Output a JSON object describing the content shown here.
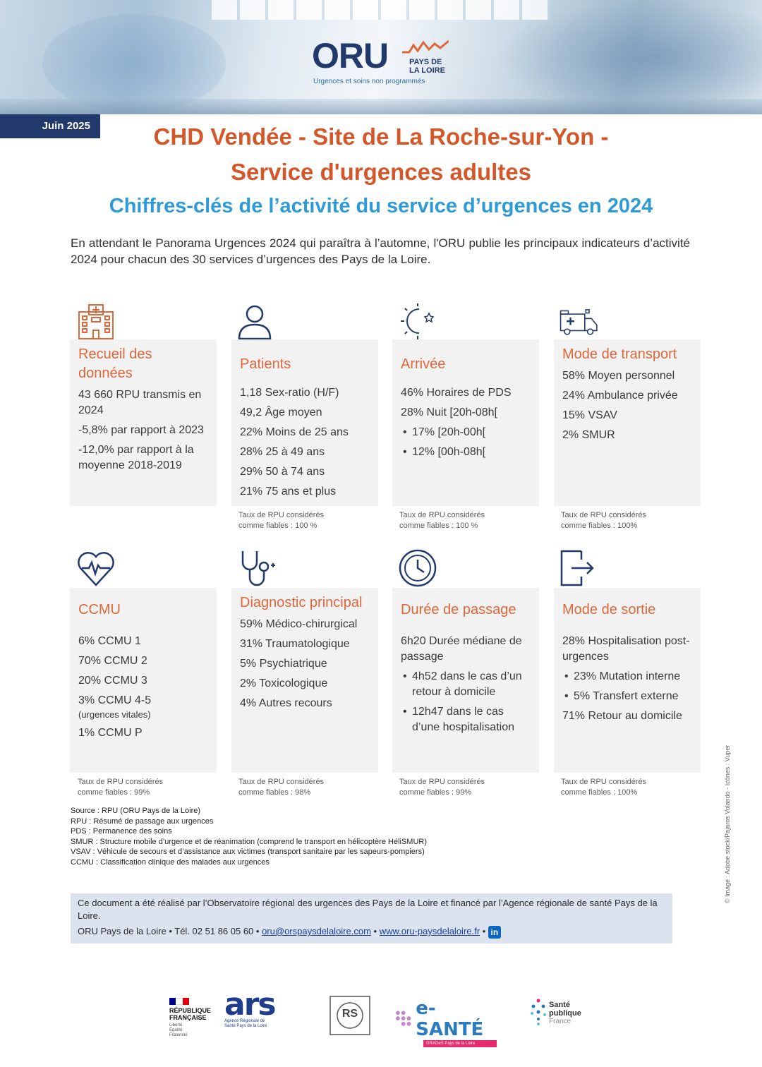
{
  "header": {
    "logo_main": "ORU",
    "logo_region_1": "PAYS DE",
    "logo_region_2": "LA LOIRE",
    "logo_tagline": "Urgences et soins non programmés",
    "date": "Juin 2025"
  },
  "title": {
    "line1": "CHD Vendée - Site de La Roche-sur-Yon -",
    "line2": "Service d'urgences adultes",
    "subtitle": "Chiffres-clés de l’activité du service d’urgences en 2024"
  },
  "intro": "En attendant le Panorama Urgences 2024 qui paraîtra à l’automne, l'ORU publie les principaux indicateurs d’activité 2024 pour chacun des 30 services d’urgences des Pays de la Loire.",
  "cards": {
    "recueil": {
      "icon": "hospital-icon",
      "title": "Recueil des données",
      "lines": [
        "43 660 RPU transmis en 2024",
        "-5,8% par rapport à 2023",
        "-12,0% par rapport à la moyenne 2018-2019"
      ]
    },
    "patients": {
      "icon": "person-icon",
      "title": "Patients",
      "lines": [
        "1,18 Sex-ratio (H/F)",
        "49,2 Âge moyen",
        "22% Moins de 25 ans",
        "28% 25 à 49 ans",
        "29% 50 à 74 ans",
        "21% 75 ans et plus"
      ],
      "rate_1": "Taux de RPU considérés",
      "rate_2": "comme fiables : 100 %"
    },
    "arrivee": {
      "icon": "sun-moon-icon",
      "title": "Arrivée",
      "lines": [
        "46% Horaires de PDS",
        "28% Nuit [20h-08h["
      ],
      "bullets": [
        "17% [20h-00h[",
        "12% [00h-08h["
      ],
      "rate_1": "Taux de RPU considérés",
      "rate_2": "comme fiables : 100 %"
    },
    "transport": {
      "icon": "ambulance-icon",
      "title": "Mode de transport",
      "lines": [
        "58% Moyen personnel",
        "24% Ambulance privée",
        "15% VSAV",
        "2% SMUR"
      ],
      "rate_1": "Taux de RPU considérés",
      "rate_2": "comme fiables : 100%"
    },
    "ccmu": {
      "icon": "heart-pulse-icon",
      "title": "CCMU",
      "lines": [
        "6% CCMU 1",
        "70% CCMU 2",
        "20% CCMU 3",
        "3% CCMU 4-5",
        "(urgences vitales)",
        "1% CCMU P"
      ],
      "rate_1": "Taux de RPU considérés",
      "rate_2": "comme fiables : 99%"
    },
    "diagnostic": {
      "icon": "stethoscope-icon",
      "title": "Diagnostic principal",
      "lines": [
        "59% Médico-chirurgical",
        "31% Traumatologique",
        "5% Psychiatrique",
        "2% Toxicologique",
        "4% Autres recours"
      ],
      "rate_1": "Taux de RPU considérés",
      "rate_2": "comme fiables : 98%"
    },
    "duree": {
      "icon": "clock-icon",
      "title": "Durée de passage",
      "lines": [
        "6h20 Durée médiane de passage"
      ],
      "bullets": [
        "4h52 dans le cas d’un retour à domicile",
        "12h47 dans le cas d’une hospitalisation"
      ],
      "rate_1": "Taux de RPU considérés",
      "rate_2": "comme fiables : 99%"
    },
    "sortie": {
      "icon": "exit-icon",
      "title": "Mode de sortie",
      "lines": [
        "28% Hospitalisation post-urgences",
        "71% Retour au domicile"
      ],
      "bullets": [
        "23% Mutation interne",
        "5% Transfert externe"
      ],
      "rate_1": "Taux de RPU considérés",
      "rate_2": "comme fiables : 100%"
    }
  },
  "sources": [
    "Source : RPU (ORU Pays de la Loire)",
    "RPU : Résumé de passage aux urgences",
    "PDS : Permanence des soins",
    "SMUR : Structure mobile d’urgence et de réanimation (comprend le transport en hélicoptère HéliSMUR)",
    "VSAV : Véhicule de secours et d’assistance aux victimes (transport sanitaire par les sapeurs-pompiers)",
    "CCMU : Classification clinique des malades aux urgences"
  ],
  "footer": {
    "line": "Ce document a été réalisé par l’Observatoire régional des urgences des Pays de la Loire et financé par l’Agence régionale de santé Pays de la Loire.",
    "contact_prefix": "ORU Pays de la Loire • Tél. 02 51 86 05 60 •",
    "email": "oru@orspaysdelaloire.com",
    "website": "www.oru-paysdelaloire.fr",
    "linkedin": "in"
  },
  "credit": "© Image : Adobe stock/Pajaros Volando - Icônes : Vuper",
  "partners": {
    "rf_1": "RÉPUBLIQUE",
    "rf_2": "FRANÇAISE",
    "rf_motto": "Liberté Égalité Fraternité",
    "ars": "ars",
    "ars_sub": "Agence Régionale de Santé Pays de la Loire",
    "rs": "RS",
    "esante": "e-SANTÉ",
    "esante_sub": "GRADeS Pays de la Loire",
    "sp_1": "Santé",
    "sp_2": "publique",
    "sp_3": "France"
  }
}
